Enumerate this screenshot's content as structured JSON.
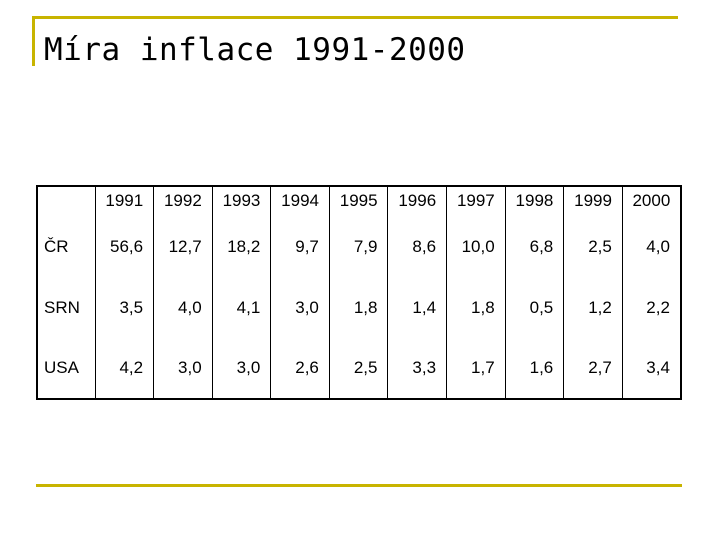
{
  "title": "Míra inflace 1991-2000",
  "table": {
    "years": [
      "1991",
      "1992",
      "1993",
      "1994",
      "1995",
      "1996",
      "1997",
      "1998",
      "1999",
      "2000"
    ],
    "rows": [
      {
        "label": "ČR",
        "values": [
          "56,6",
          "12,7",
          "18,2",
          "9,7",
          "7,9",
          "8,6",
          "10,0",
          "6,8",
          "2,5",
          "4,0"
        ]
      },
      {
        "label": "SRN",
        "values": [
          "3,5",
          "4,0",
          "4,1",
          "3,0",
          "1,8",
          "1,4",
          "1,8",
          "0,5",
          "1,2",
          "2,2"
        ]
      },
      {
        "label": "USA",
        "values": [
          "4,2",
          "3,0",
          "3,0",
          "2,6",
          "2,5",
          "3,3",
          "1,7",
          "1,6",
          "2,7",
          "3,4"
        ]
      }
    ]
  },
  "colors": {
    "accent_rule": "#c8b400"
  }
}
